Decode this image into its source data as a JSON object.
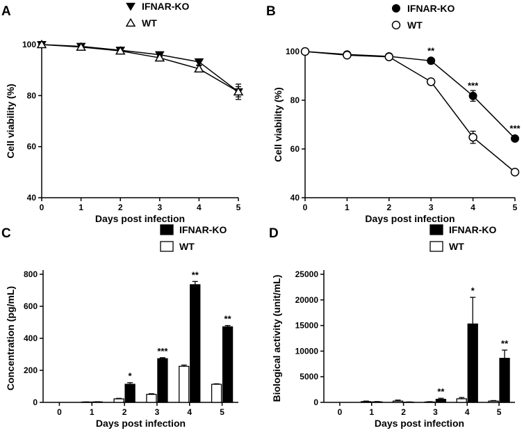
{
  "chart_data": [
    {
      "panel": "A",
      "type": "line",
      "xlabel": "Days post infection",
      "ylabel": "Cell viability (%)",
      "x": [
        0,
        1,
        2,
        3,
        4,
        5
      ],
      "xticks": [
        "0",
        "1",
        "2",
        "3",
        "4",
        "5"
      ],
      "ylim": [
        40,
        100
      ],
      "yticks": [
        "40",
        "60",
        "80",
        "100"
      ],
      "series": [
        {
          "name": "IFNAR-KO",
          "marker": "triangle-down-filled",
          "values": [
            100,
            99.3,
            97.8,
            96,
            93.2,
            81.5
          ],
          "err": [
            0.5,
            0.6,
            0.6,
            0.8,
            1.2,
            3
          ]
        },
        {
          "name": "WT",
          "marker": "triangle-up-open",
          "values": [
            100,
            99,
            97.5,
            94.8,
            90.5,
            81.5
          ],
          "err": [
            0.5,
            0.6,
            0.6,
            0.8,
            1.2,
            2
          ]
        }
      ],
      "annotations": []
    },
    {
      "panel": "B",
      "type": "line",
      "xlabel": "Days post infection",
      "ylabel": "Cell viability (%)",
      "x": [
        0,
        1,
        2,
        3,
        4,
        5
      ],
      "xticks": [
        "0",
        "1",
        "2",
        "3",
        "4",
        "5"
      ],
      "ylim": [
        40,
        100
      ],
      "yticks": [
        "40",
        "60",
        "80",
        "100"
      ],
      "series": [
        {
          "name": "IFNAR-KO",
          "marker": "circle-filled",
          "values": [
            100,
            98.8,
            98,
            96.2,
            81.8,
            64.3
          ],
          "err": [
            0.5,
            0.5,
            0.5,
            0.8,
            2.2,
            1
          ]
        },
        {
          "name": "WT",
          "marker": "circle-open",
          "values": [
            100,
            98.5,
            97.8,
            87.6,
            64.8,
            50.5
          ],
          "err": [
            0.5,
            0.5,
            0.5,
            0.8,
            2.5,
            1
          ]
        }
      ],
      "annotations": [
        {
          "x": 3,
          "y": 96.2,
          "label": "**"
        },
        {
          "x": 4,
          "y": 81.8,
          "label": "***"
        },
        {
          "x": 5,
          "y": 64.3,
          "label": "***"
        }
      ]
    },
    {
      "panel": "C",
      "type": "bar",
      "xlabel": "Days post infection",
      "ylabel": "Concentration (pg/mL)",
      "categories": [
        "0",
        "1",
        "2",
        "3",
        "4",
        "5"
      ],
      "ylim": [
        0,
        800
      ],
      "yticks": [
        "0",
        "200",
        "400",
        "600",
        "800"
      ],
      "series": [
        {
          "name": "WT",
          "color": "#ffffff",
          "values": [
            0,
            2,
            22,
            50,
            225,
            113
          ],
          "err": [
            0,
            1,
            3,
            4,
            8,
            3
          ]
        },
        {
          "name": "IFNAR-KO",
          "color": "#000000",
          "values": [
            0,
            3,
            113,
            273,
            735,
            472
          ],
          "err": [
            0,
            1,
            10,
            6,
            20,
            8
          ]
        }
      ],
      "legend_order": [
        "IFNAR-KO",
        "WT"
      ],
      "annotations": [
        {
          "category": "2",
          "label": "*"
        },
        {
          "category": "3",
          "label": "***"
        },
        {
          "category": "4",
          "label": "**"
        },
        {
          "category": "5",
          "label": "**"
        }
      ]
    },
    {
      "panel": "D",
      "type": "bar",
      "xlabel": "Days post infection",
      "ylabel": "Biological activity (unit/mL)",
      "categories": [
        "0",
        "1",
        "2",
        "3",
        "4",
        "5"
      ],
      "ylim": [
        0,
        25000
      ],
      "yticks": [
        "0",
        "5000",
        "10000",
        "15000",
        "20000",
        "25000"
      ],
      "series": [
        {
          "name": "WT",
          "color": "#ffffff",
          "values": [
            0,
            150,
            250,
            80,
            700,
            250
          ],
          "err": [
            0,
            100,
            200,
            60,
            250,
            100
          ]
        },
        {
          "name": "IFNAR-KO",
          "color": "#000000",
          "values": [
            0,
            100,
            50,
            600,
            15300,
            8600
          ],
          "err": [
            0,
            60,
            40,
            200,
            5200,
            1600
          ]
        }
      ],
      "legend_order": [
        "IFNAR-KO",
        "WT"
      ],
      "annotations": [
        {
          "category": "3",
          "label": "**"
        },
        {
          "category": "4",
          "label": "*"
        },
        {
          "category": "5",
          "label": "**"
        }
      ]
    }
  ]
}
